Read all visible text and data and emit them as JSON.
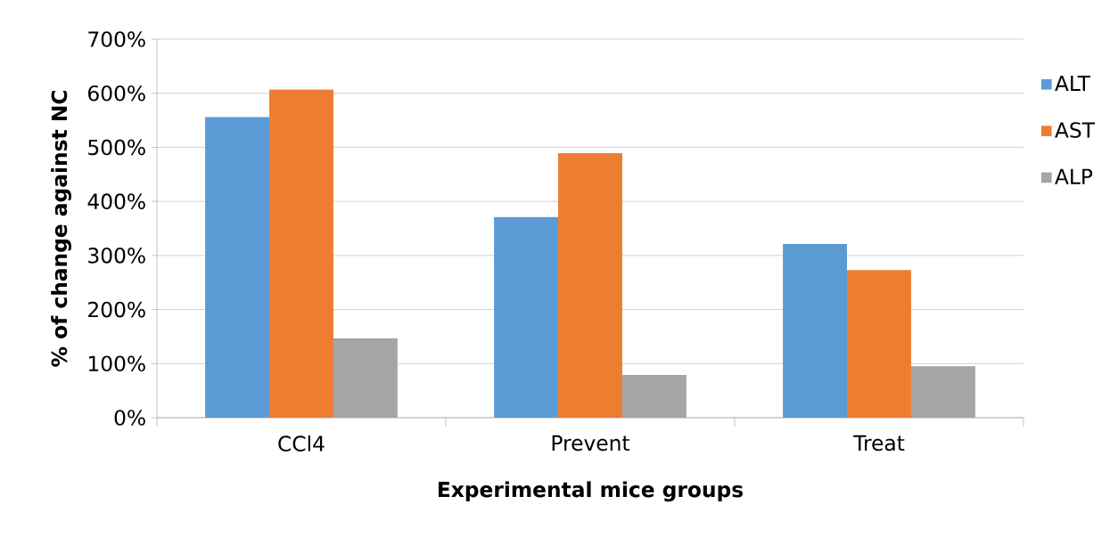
{
  "chart_data": {
    "type": "bar",
    "xlabel": "Experimental mice groups",
    "ylabel": "% of change against NC",
    "categories": [
      "CCl4",
      "Prevent",
      "Treat"
    ],
    "series": [
      {
        "name": "ALT",
        "color": "#5b9bd5",
        "values": [
          556,
          371,
          321
        ]
      },
      {
        "name": "AST",
        "color": "#ed7d31",
        "values": [
          607,
          489,
          273
        ]
      },
      {
        "name": "ALP",
        "color": "#a5a5a5",
        "values": [
          147,
          79,
          95
        ]
      }
    ],
    "ylim": [
      0,
      700
    ],
    "yticks": [
      {
        "value": 0,
        "label": "0%"
      },
      {
        "value": 100,
        "label": "100%"
      },
      {
        "value": 200,
        "label": "200%"
      },
      {
        "value": 300,
        "label": "300%"
      },
      {
        "value": 400,
        "label": "400%"
      },
      {
        "value": 500,
        "label": "500%"
      },
      {
        "value": 600,
        "label": "600%"
      },
      {
        "value": 700,
        "label": "700%"
      }
    ],
    "grid": "y",
    "legend": "right"
  }
}
